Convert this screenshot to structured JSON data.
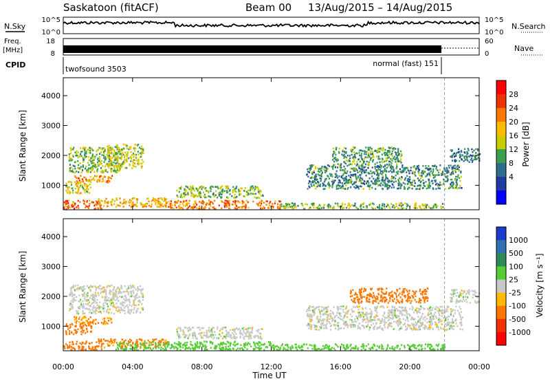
{
  "header": {
    "station": "Saskatoon (fitACF)",
    "beam": "Beam 00",
    "date_range": "13/Aug/2015 – 14/Aug/2015"
  },
  "labels": {
    "nsky": "N.Sky",
    "freq_line1": "Freq.",
    "freq_line2": "[MHz]",
    "cpid": "CPID",
    "nsearch": "N.Search",
    "nave": "Nave",
    "x_title": "Time UT"
  },
  "panels": {
    "noise": {
      "left_ticks": [
        "10^5",
        "10^0"
      ],
      "right_ticks": [
        "10^5",
        "10^0"
      ]
    },
    "freq": {
      "left_ticks": [
        "18",
        "8"
      ],
      "right_ticks": [
        "60",
        "0"
      ]
    },
    "cpid": [
      {
        "start_hour": 0,
        "label": "twofsound 3503"
      },
      {
        "start_hour": 22,
        "label": "normal (fast) 151"
      }
    ]
  },
  "chart_data": [
    {
      "type": "heatmap",
      "name": "power",
      "ylabel": "Slant Range [km]",
      "xlabel": "Time UT",
      "xlim_hours": [
        0,
        24
      ],
      "ylim_km": [
        180,
        4600
      ],
      "x_ticks": [
        "00:00",
        "04:00",
        "08:00",
        "12:00",
        "16:00",
        "20:00",
        "00:00"
      ],
      "y_ticks": [
        1000,
        2000,
        3000,
        4000
      ],
      "colorbar": {
        "title": "Power [dB]",
        "labels": [
          "28",
          "24",
          "20",
          "16",
          "12",
          "8",
          "4"
        ],
        "colors": [
          "#ff0000",
          "#ee3300",
          "#ff7700",
          "#ffbb00",
          "#c8cc00",
          "#3aa050",
          "#2e6e8a",
          "#1f3aa0",
          "#0000ff"
        ]
      },
      "regions": [
        {
          "t": [
            0.1,
            1.6
          ],
          "r": [
            750,
            1150
          ],
          "level": 16
        },
        {
          "t": [
            0.6,
            2.8
          ],
          "r": [
            1100,
            1350
          ],
          "level": 20
        },
        {
          "t": [
            0.3,
            3.4
          ],
          "r": [
            1450,
            2300
          ],
          "level": 12
        },
        {
          "t": [
            2.5,
            4.6
          ],
          "r": [
            1600,
            2400
          ],
          "level": 14
        },
        {
          "t": [
            0,
            2.2
          ],
          "r": [
            220,
            520
          ],
          "level": 24
        },
        {
          "t": [
            2,
            6
          ],
          "r": [
            300,
            600
          ],
          "level": 18
        },
        {
          "t": [
            6.5,
            11.5
          ],
          "r": [
            600,
            1000
          ],
          "level": 12
        },
        {
          "t": [
            6,
            12.5
          ],
          "r": [
            230,
            520
          ],
          "level": 22
        },
        {
          "t": [
            12.5,
            22
          ],
          "r": [
            230,
            430
          ],
          "level": 12
        },
        {
          "t": [
            14,
            23
          ],
          "r": [
            900,
            1700
          ],
          "level": 8
        },
        {
          "t": [
            15.5,
            19.5
          ],
          "r": [
            1700,
            2300
          ],
          "level": 10
        },
        {
          "t": [
            22.3,
            24
          ],
          "r": [
            1800,
            2250
          ],
          "level": 6
        }
      ],
      "cpid_change_hour": 22
    },
    {
      "type": "heatmap",
      "name": "velocity",
      "ylabel": "Slant Range [km]",
      "xlabel": "Time UT",
      "xlim_hours": [
        0,
        24
      ],
      "ylim_km": [
        180,
        4600
      ],
      "x_ticks": [
        "00:00",
        "04:00",
        "08:00",
        "12:00",
        "16:00",
        "20:00",
        "00:00"
      ],
      "y_ticks": [
        1000,
        2000,
        3000,
        4000
      ],
      "colorbar": {
        "title": "Velocity [m s⁻¹]",
        "labels": [
          "1000",
          "500",
          "100",
          "25",
          "-25",
          "-100",
          "-500",
          "-1000"
        ],
        "colors": [
          "#1a3cc8",
          "#3070b0",
          "#2e8b57",
          "#55cc33",
          "#c8c8c8",
          "#ffbb00",
          "#ff7700",
          "#ee3300",
          "#ff0000"
        ]
      },
      "regions": [
        {
          "t": [
            0.1,
            1.6
          ],
          "r": [
            750,
            1150
          ],
          "level": -200
        },
        {
          "t": [
            0.6,
            2.8
          ],
          "r": [
            1100,
            1350
          ],
          "level": -100
        },
        {
          "t": [
            0.3,
            4.6
          ],
          "r": [
            1450,
            2400
          ],
          "level": 0
        },
        {
          "t": [
            0,
            2.2
          ],
          "r": [
            220,
            520
          ],
          "level": -150
        },
        {
          "t": [
            2,
            6
          ],
          "r": [
            300,
            600
          ],
          "level": -120
        },
        {
          "t": [
            6.5,
            11.5
          ],
          "r": [
            600,
            1000
          ],
          "level": 0
        },
        {
          "t": [
            3,
            12.5
          ],
          "r": [
            230,
            520
          ],
          "level": 60
        },
        {
          "t": [
            12.5,
            22
          ],
          "r": [
            230,
            430
          ],
          "level": 60
        },
        {
          "t": [
            14,
            23
          ],
          "r": [
            900,
            1700
          ],
          "level": 0
        },
        {
          "t": [
            16.5,
            21
          ],
          "r": [
            1800,
            2300
          ],
          "level": -300
        },
        {
          "t": [
            22.3,
            24
          ],
          "r": [
            1800,
            2250
          ],
          "level": 0
        }
      ],
      "cpid_change_hour": 22
    }
  ]
}
